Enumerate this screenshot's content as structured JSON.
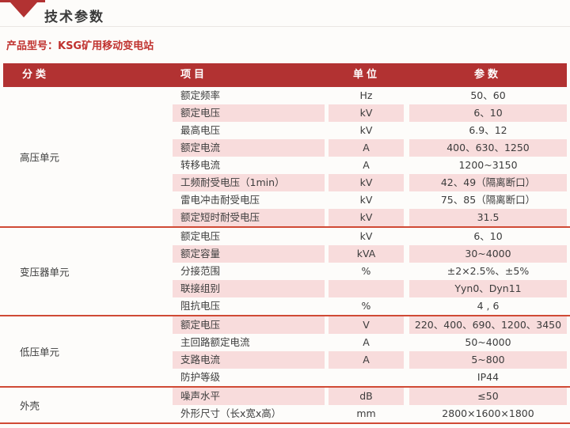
{
  "page": {
    "title": "技术参数",
    "product_model": "产品型号：KSG矿用移动变电站"
  },
  "colors": {
    "header_red": "#b23232",
    "row_pink": "#f8dcdc",
    "divider_red": "#d04a35",
    "model_text_red": "#c0322f"
  },
  "table": {
    "headers": {
      "category": "分类",
      "item": "项目",
      "unit": "单位",
      "param": "参数"
    },
    "sections": [
      {
        "category": "高压单元",
        "rows": [
          {
            "item": "额定频率",
            "unit": "Hz",
            "param": "50、60"
          },
          {
            "item": "额定电压",
            "unit": "kV",
            "param": "6、10"
          },
          {
            "item": "最高电压",
            "unit": "kV",
            "param": "6.9、12"
          },
          {
            "item": "额定电流",
            "unit": "A",
            "param": "400、630、1250"
          },
          {
            "item": "转移电流",
            "unit": "A",
            "param": "1200~3150"
          },
          {
            "item": "工频耐受电压（1min）",
            "unit": "kV",
            "param": "42、49（隔离断口）"
          },
          {
            "item": "雷电冲击耐受电压",
            "unit": "kV",
            "param": "75、85（隔离断口）"
          },
          {
            "item": "额定短时耐受电压",
            "unit": "kV",
            "param": "31.5"
          }
        ]
      },
      {
        "category": "变压器单元",
        "rows": [
          {
            "item": "额定电压",
            "unit": "kV",
            "param": "6、10"
          },
          {
            "item": "额定容量",
            "unit": "kVA",
            "param": "30~4000"
          },
          {
            "item": "分接范围",
            "unit": "%",
            "param": "±2×2.5%、±5%"
          },
          {
            "item": "联接组别",
            "unit": "",
            "param": "Yyn0、Dyn11"
          },
          {
            "item": "阻抗电压",
            "unit": "%",
            "param": "4 , 6"
          }
        ]
      },
      {
        "category": "低压单元",
        "rows": [
          {
            "item": "额定电压",
            "unit": "V",
            "param": "220、400、690、1200、3450"
          },
          {
            "item": "主回路额定电流",
            "unit": "A",
            "param": "50~4000"
          },
          {
            "item": "支路电流",
            "unit": "A",
            "param": "5~800"
          },
          {
            "item": "防护等级",
            "unit": "",
            "param": "IP44"
          }
        ]
      },
      {
        "category": "外壳",
        "rows": [
          {
            "item": "噪声水平",
            "unit": "dB",
            "param": "≤50"
          },
          {
            "item": "外形尺寸（长x宽x高）",
            "unit": "mm",
            "param": "2800×1600×1800"
          }
        ]
      }
    ]
  }
}
